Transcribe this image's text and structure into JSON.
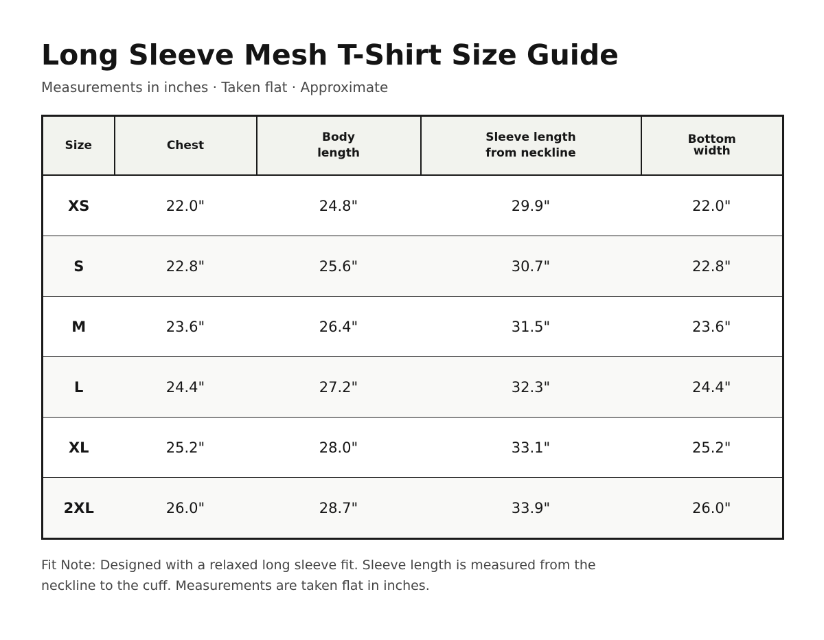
{
  "page": {
    "title": "Long Sleeve Mesh T-Shirt Size Guide",
    "subtitle": "Measurements in inches · Taken flat · Approximate"
  },
  "table": {
    "headers": [
      {
        "line1": "Size",
        "line2": ""
      },
      {
        "line1": "Chest",
        "line2": ""
      },
      {
        "line1": "Body",
        "line2": "length"
      },
      {
        "line1": "Sleeve length",
        "line2": "from neckline"
      },
      {
        "line1": "Bottom",
        "line2": "width"
      }
    ],
    "rows": [
      [
        "XS",
        "22.0\"",
        "24.8\"",
        "29.9\"",
        "22.0\""
      ],
      [
        "S",
        "22.8\"",
        "25.6\"",
        "30.7\"",
        "22.8\""
      ],
      [
        "M",
        "23.6\"",
        "26.4\"",
        "31.5\"",
        "23.6\""
      ],
      [
        "L",
        "24.4\"",
        "27.2\"",
        "32.3\"",
        "24.4\""
      ],
      [
        "XL",
        "25.2\"",
        "28.0\"",
        "33.1\"",
        "25.2\""
      ],
      [
        "2XL",
        "26.0\"",
        "28.7\"",
        "33.9\"",
        "26.0\""
      ]
    ]
  },
  "note": {
    "text": "Fit Note: Designed with a relaxed long sleeve fit. Sleeve length is measured from the neckline to the cuff. Measurements are taken flat in inches."
  },
  "colors": {
    "text": "#141414",
    "muted_text": "#4a4a4a",
    "border": "#1a1a1a",
    "header_background": "#f2f3ee",
    "alternate_row_background": "#f9f9f7"
  }
}
